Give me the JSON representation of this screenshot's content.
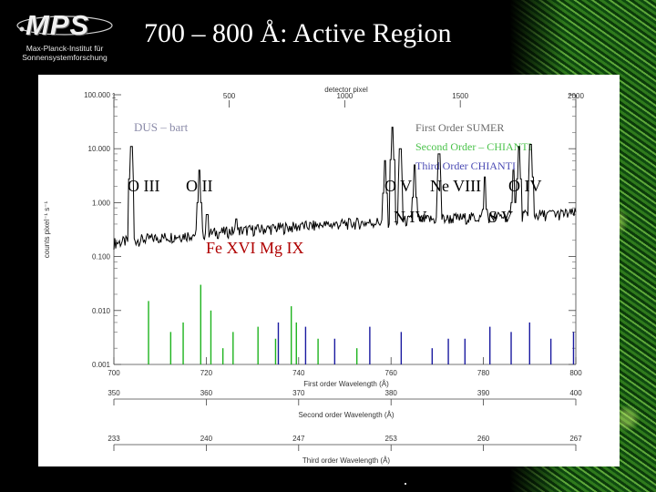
{
  "header": {
    "logo": {
      "mark": "MPS",
      "line1": "Max-Planck-Institut für",
      "line2": "Sonnensystemforschung"
    },
    "title": "700 – 800 Å: Active Region"
  },
  "chart_data": {
    "type": "line",
    "y_scale": "log",
    "grid": false,
    "x": [
      700,
      720,
      740,
      760,
      780,
      800
    ],
    "xlabel": "First order    Wavelength (Å)",
    "secondary_xlabel": "Second order    Wavelength (Å)",
    "secondary_x_ticks": [
      350,
      360,
      370,
      380,
      390,
      400
    ],
    "third_xlabel": "Third order    Wavelength (Å)",
    "third_x_ticks": [
      233,
      240,
      247,
      253,
      260,
      267
    ],
    "top_xlabel": "detector pixel",
    "top_x_ticks": [
      1,
      500,
      1000,
      1500,
      2000
    ],
    "ylabel": "counts pixel⁻¹ s⁻¹",
    "ylim": [
      0.001,
      100
    ],
    "y_ticks": [
      "100.000",
      "10.000",
      "1.000",
      "0.100",
      "0.010",
      "0.001"
    ],
    "legend_title": "DUS – bart",
    "legend": [
      {
        "name": "First   Order    SUMER",
        "color": "#000000"
      },
      {
        "name": "Second  Order  –  CHIANTI",
        "color": "#1db31d"
      },
      {
        "name": "Third   Order    CHIANTI",
        "color": "#1a1aa0"
      }
    ],
    "legend_position": "top-right",
    "series": [
      {
        "name": "First   Order    SUMER",
        "color": "#000000",
        "lines": [
          {
            "wl": 703.8,
            "peak": 11
          },
          {
            "wl": 718.5,
            "peak": 4
          },
          {
            "wl": 720.2,
            "peak": 0.6
          },
          {
            "wl": 726.5,
            "peak": 0.5
          },
          {
            "wl": 740.5,
            "peak": 0.4
          },
          {
            "wl": 745.0,
            "peak": 0.35
          },
          {
            "wl": 758.7,
            "peak": 6
          },
          {
            "wl": 760.3,
            "peak": 25
          },
          {
            "wl": 762.0,
            "peak": 10
          },
          {
            "wl": 765.1,
            "peak": 5
          },
          {
            "wl": 770.4,
            "peak": 8
          },
          {
            "wl": 780.3,
            "peak": 3
          },
          {
            "wl": 786.5,
            "peak": 4
          },
          {
            "wl": 787.7,
            "peak": 11
          },
          {
            "wl": 790.2,
            "peak": 12
          },
          {
            "wl": 795.0,
            "peak": 0.7
          }
        ]
      },
      {
        "name": "Second  Order  –  CHIANTI",
        "color": "#1db31d",
        "lines": [
          {
            "wl": 707.5,
            "peak": 0.015
          },
          {
            "wl": 712.3,
            "peak": 0.004
          },
          {
            "wl": 715.0,
            "peak": 0.006
          },
          {
            "wl": 718.8,
            "peak": 0.03
          },
          {
            "wl": 721.0,
            "peak": 0.01
          },
          {
            "wl": 723.6,
            "peak": 0.002
          },
          {
            "wl": 725.8,
            "peak": 0.004
          },
          {
            "wl": 731.2,
            "peak": 0.005
          },
          {
            "wl": 735.0,
            "peak": 0.003
          },
          {
            "wl": 738.4,
            "peak": 0.012
          },
          {
            "wl": 739.5,
            "peak": 0.006
          },
          {
            "wl": 744.2,
            "peak": 0.003
          },
          {
            "wl": 752.6,
            "peak": 0.002
          }
        ]
      },
      {
        "name": "Third   Order    CHIANTI",
        "color": "#1a1aa0",
        "lines": [
          {
            "wl": 735.6,
            "peak": 0.006
          },
          {
            "wl": 741.5,
            "peak": 0.005
          },
          {
            "wl": 747.8,
            "peak": 0.003
          },
          {
            "wl": 755.4,
            "peak": 0.005
          },
          {
            "wl": 762.2,
            "peak": 0.004
          },
          {
            "wl": 768.9,
            "peak": 0.002
          },
          {
            "wl": 772.4,
            "peak": 0.003
          },
          {
            "wl": 776.0,
            "peak": 0.003
          },
          {
            "wl": 781.4,
            "peak": 0.005
          },
          {
            "wl": 786.0,
            "peak": 0.004
          },
          {
            "wl": 790.0,
            "peak": 0.006
          },
          {
            "wl": 794.6,
            "peak": 0.003
          },
          {
            "wl": 799.5,
            "peak": 0.004
          }
        ]
      }
    ],
    "annotations": [
      {
        "text": "O III",
        "color": "#000000"
      },
      {
        "text": "O II",
        "color": "#000000"
      },
      {
        "text": "O V",
        "color": "#000000"
      },
      {
        "text": "Ne VIII",
        "color": "#000000"
      },
      {
        "text": "O IV",
        "color": "#000000"
      },
      {
        "text": "N IV",
        "color": "#000000"
      },
      {
        "text": "S V",
        "color": "#000000"
      },
      {
        "text": "Fe XVI  Mg IX",
        "color": "#b00000"
      }
    ]
  }
}
